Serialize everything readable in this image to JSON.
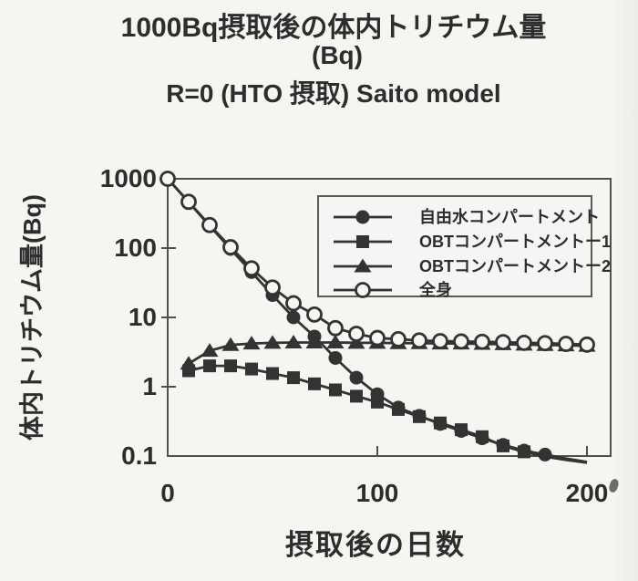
{
  "chart_data": {
    "type": "line",
    "title": "1000Bq摂取後の体内トリチウム量",
    "subtitle": [
      "(Bq)",
      "R=0 (HTO 摂取) Saito model"
    ],
    "xlabel": "摂取後の日数",
    "ylabel": "体内トリチウム量(Bq)",
    "y_scale": "log",
    "grid": "off",
    "legend_position": "top-right-inside",
    "xlim": [
      0,
      211
    ],
    "ylim": [
      0.1,
      1000
    ],
    "x_tick_values": [
      0,
      100,
      200
    ],
    "x_tick_labels": [
      "0",
      "100",
      "200"
    ],
    "y_tick_values": [
      1000,
      100,
      10,
      1,
      0.1
    ],
    "y_tick_labels": [
      "1000",
      "100",
      "10",
      "1",
      "0.1"
    ],
    "x": [
      0,
      10,
      20,
      30,
      40,
      50,
      60,
      70,
      80,
      90,
      100,
      110,
      120,
      130,
      140,
      150,
      160,
      170,
      180,
      190,
      200
    ],
    "series": [
      {
        "name": "自由水コンパートメント",
        "marker": "filled-circle",
        "values": [
          1000,
          460,
          210,
          97,
          45,
          21,
          10,
          5.3,
          2.6,
          1.35,
          0.78,
          0.5,
          0.38,
          0.29,
          0.23,
          0.18,
          0.145,
          0.12,
          0.105,
          0.092,
          0.082
        ]
      },
      {
        "name": "OBTコンパートメントー1",
        "marker": "filled-square",
        "values": [
          null,
          1.7,
          2.0,
          2.0,
          1.8,
          1.55,
          1.35,
          1.1,
          0.9,
          0.73,
          0.6,
          0.47,
          0.37,
          0.3,
          0.24,
          0.19,
          0.14,
          0.115,
          0.098,
          0.088,
          0.08
        ]
      },
      {
        "name": "OBTコンパートメントー2",
        "marker": "filled-triangle",
        "values": [
          null,
          2.15,
          3.3,
          4.0,
          4.2,
          4.3,
          4.35,
          4.35,
          4.35,
          4.3,
          4.3,
          4.25,
          4.25,
          4.2,
          4.2,
          4.15,
          4.1,
          4.05,
          4.0,
          3.95,
          3.9
        ]
      },
      {
        "name": "全身",
        "marker": "open-circle",
        "values": [
          1000,
          465,
          215,
          103,
          51,
          27,
          16,
          11,
          7.0,
          5.8,
          5.05,
          4.85,
          4.65,
          4.55,
          4.5,
          4.45,
          4.4,
          4.3,
          4.25,
          4.15,
          4.05
        ]
      }
    ],
    "colors": {
      "line": "#333333",
      "frame": "#4f4f4f",
      "paper": "#f6f5f2",
      "text": "#2d2d2d"
    }
  }
}
